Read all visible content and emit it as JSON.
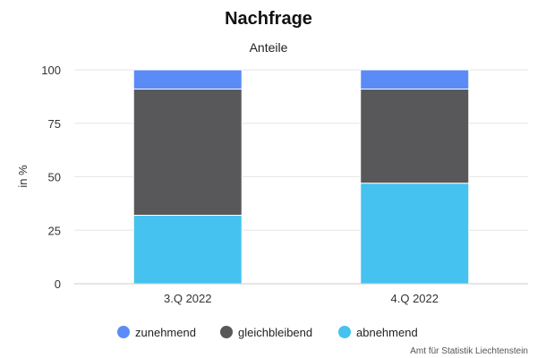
{
  "chart_data": {
    "type": "bar",
    "stacked": true,
    "title": "Nachfrage",
    "subtitle": "Anteile",
    "xlabel": "",
    "ylabel": "in %",
    "ylim": [
      0,
      100
    ],
    "yticks": [
      0,
      25,
      50,
      75,
      100
    ],
    "grid": true,
    "legend_position": "bottom",
    "categories": [
      "3.Q 2022",
      "4.Q 2022"
    ],
    "series": [
      {
        "name": "abnehmend",
        "values": [
          32,
          47
        ],
        "color": "#45c2f0"
      },
      {
        "name": "gleichbleibend",
        "values": [
          59,
          44
        ],
        "color": "#58585a"
      },
      {
        "name": "zunehmend",
        "values": [
          9,
          9
        ],
        "color": "#5b8bf7"
      }
    ],
    "legend_order": [
      "zunehmend",
      "gleichbleibend",
      "abnehmend"
    ],
    "credit": "Amt für Statistik Liechtenstein"
  }
}
